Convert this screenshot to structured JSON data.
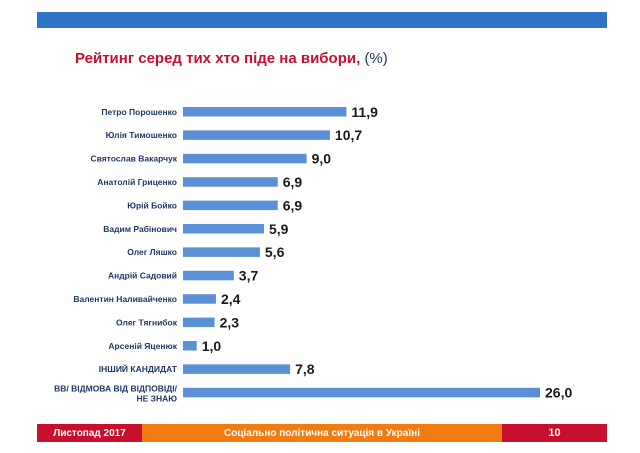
{
  "slide": {
    "title": "Рейтинг серед тих хто піде на вибори,",
    "title_unit": "(%)"
  },
  "footer": {
    "date": "Листопад 2017",
    "topic": "Соціально політична ситуація в Україні",
    "page": "10"
  },
  "colors": {
    "bar": "#5b8fd6",
    "header_band": "#2e74c8",
    "title": "#c8102e",
    "footer_red": "#c8102e",
    "footer_orange": "#f07c12"
  },
  "chart_data": {
    "type": "bar",
    "orientation": "horizontal",
    "categories": [
      "Петро Порошенко",
      "Юлія Тимошенко",
      "Святослав Вакарчук",
      "Анатолій Гриценко",
      "Юрій Бойко",
      "Вадим Рабінович",
      "Олег Ляшко",
      "Андрій Садовий",
      "Валентин Наливайченко",
      "Олег Тягнибок",
      "Арсеній Яценюк",
      "ІНШИЙ КАНДИДАТ",
      "ВВ/ ВІДМОВА ВІД ВІДПОВІДІ/ НЕ ЗНАЮ"
    ],
    "values": [
      11.9,
      10.7,
      9.0,
      6.9,
      6.9,
      5.9,
      5.6,
      3.7,
      2.4,
      2.3,
      1.0,
      7.8,
      26.0
    ],
    "value_labels": [
      "11,9",
      "10,7",
      "9,0",
      "6,9",
      "6,9",
      "5,9",
      "5,6",
      "3,7",
      "2,4",
      "2,3",
      "1,0",
      "7,8",
      "26,0"
    ],
    "xlim": [
      0,
      26
    ],
    "grid": false,
    "axes_visible": false
  }
}
